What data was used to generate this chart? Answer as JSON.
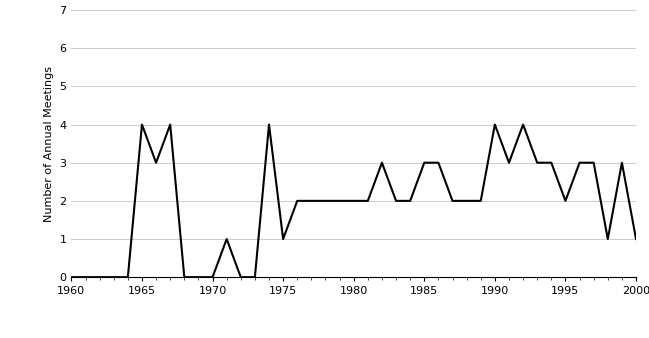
{
  "x": [
    1960,
    1961,
    1962,
    1963,
    1964,
    1965,
    1966,
    1967,
    1968,
    1969,
    1970,
    1971,
    1972,
    1973,
    1974,
    1975,
    1976,
    1977,
    1978,
    1979,
    1980,
    1981,
    1982,
    1983,
    1984,
    1985,
    1986,
    1987,
    1988,
    1989,
    1990,
    1991,
    1992,
    1993,
    1994,
    1995,
    1996,
    1997,
    1998,
    1999,
    2000
  ],
  "y": [
    0,
    0,
    0,
    0,
    0,
    4,
    3,
    4,
    0,
    0,
    0,
    1,
    0,
    0,
    4,
    1,
    2,
    2,
    2,
    2,
    2,
    2,
    3,
    2,
    2,
    3,
    3,
    2,
    2,
    2,
    4,
    3,
    4,
    3,
    3,
    2,
    3,
    3,
    1,
    3,
    1
  ],
  "ylabel": "Number of Annual Meetings",
  "ylim": [
    0,
    7
  ],
  "xlim": [
    1960,
    2000
  ],
  "yticks": [
    0,
    1,
    2,
    3,
    4,
    5,
    6,
    7
  ],
  "xticks": [
    1960,
    1965,
    1970,
    1975,
    1980,
    1985,
    1990,
    1995,
    2000
  ],
  "line_color": "#000000",
  "line_width": 1.5,
  "background_color": "#ffffff",
  "grid_color": "#cccccc"
}
